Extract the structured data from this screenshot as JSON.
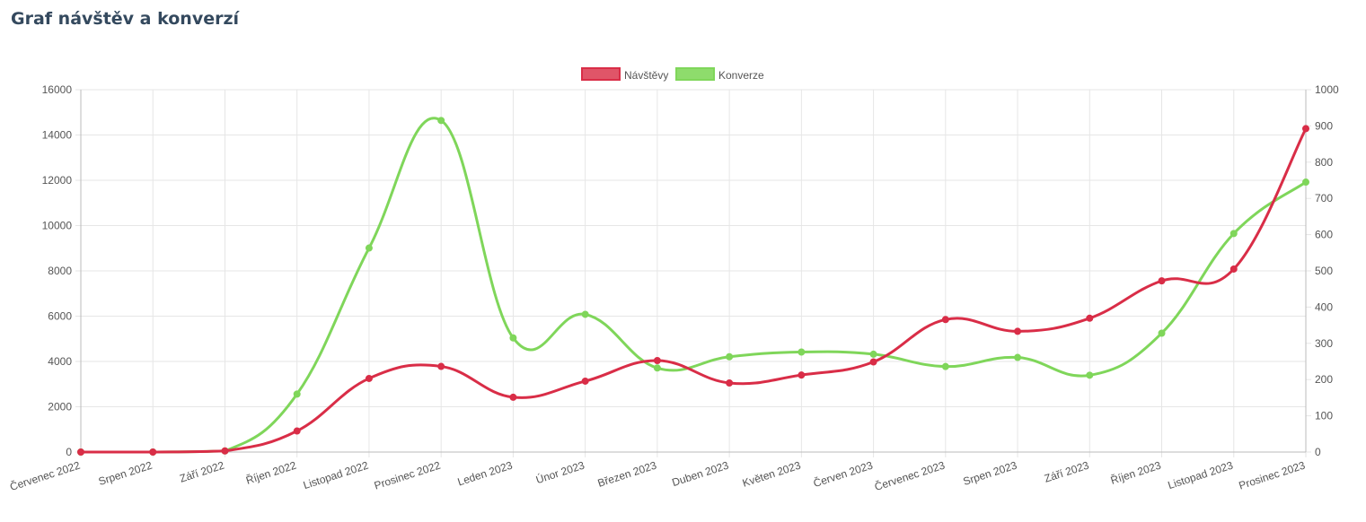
{
  "page": {
    "title": "Graf návštěv a konverzí"
  },
  "colors": {
    "series_0": "#d92d47",
    "series_1": "#7fd65a",
    "grid": "#e6e6e6",
    "axis": "#bbbbbb"
  },
  "chart_data": {
    "type": "line",
    "title": "",
    "xlabel": "",
    "ylabel": "",
    "categories": [
      "Červenec 2022",
      "Srpen 2022",
      "Září 2022",
      "Říjen 2022",
      "Listopad 2022",
      "Prosinec 2022",
      "Leden 2023",
      "Únor 2023",
      "Březen 2023",
      "Duben 2023",
      "Květen 2023",
      "Červen 2023",
      "Červenec 2023",
      "Srpen 2023",
      "Září 2023",
      "Říjen 2023",
      "Listopad 2023",
      "Prosinec 2023"
    ],
    "y_left": {
      "min": 0,
      "max": 16000,
      "step": 2000
    },
    "y_right": {
      "min": 0,
      "max": 1000,
      "step": 100
    },
    "grid": true,
    "legend_position": "top",
    "series": [
      {
        "name": "Návštěvy",
        "axis": "left",
        "values": [
          0,
          0,
          50,
          930,
          3250,
          3780,
          2420,
          3130,
          4040,
          3050,
          3400,
          3980,
          5850,
          5330,
          5910,
          7560,
          8080,
          14280
        ]
      },
      {
        "name": "Konverze",
        "axis": "right",
        "values": [
          0,
          0,
          3,
          160,
          563,
          915,
          315,
          380,
          232,
          263,
          276,
          270,
          236,
          261,
          212,
          328,
          603,
          745
        ]
      }
    ]
  }
}
